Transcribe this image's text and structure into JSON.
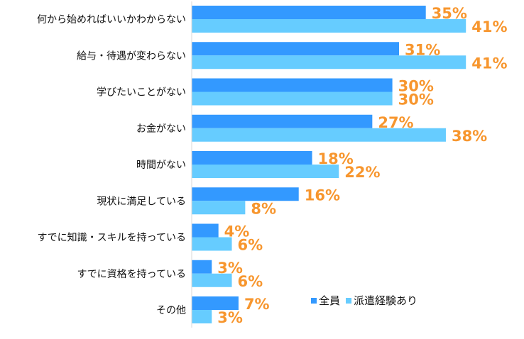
{
  "chart_data": {
    "type": "bar",
    "orientation": "horizontal",
    "categories": [
      "何から始めればいいかわからない",
      "給与・待遇が変わらない",
      "学びたいことがない",
      "お金がない",
      "時間がない",
      "現状に満足している",
      "すでに知識・スキルを持っている",
      "すでに資格を持っている",
      "その他"
    ],
    "series": [
      {
        "name": "全員",
        "color": "#3399ff",
        "values": [
          35,
          31,
          30,
          27,
          18,
          16,
          4,
          3,
          7
        ]
      },
      {
        "name": "派遣経験あり",
        "color": "#66ccff",
        "values": [
          41,
          41,
          30,
          38,
          22,
          8,
          6,
          6,
          3
        ]
      }
    ],
    "value_suffix": "%",
    "label_color": "#f7962e",
    "xlim": [
      0,
      45
    ],
    "grid": false,
    "legend": "bottom-right"
  }
}
